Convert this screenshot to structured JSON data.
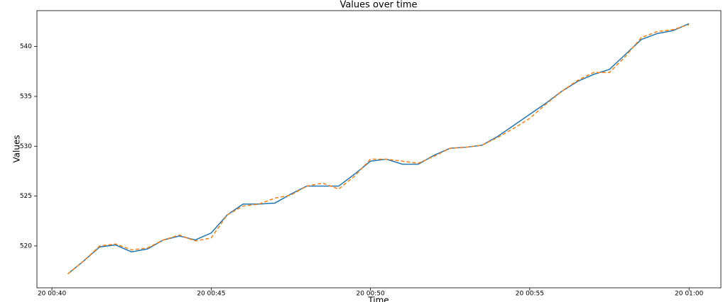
{
  "chart_data": {
    "type": "line",
    "title": "Values over time",
    "xlabel": "Time",
    "ylabel": "Values",
    "x": [
      40.5,
      41.0,
      41.5,
      42.0,
      42.5,
      43.0,
      43.5,
      44.0,
      44.5,
      45.0,
      45.5,
      46.0,
      46.5,
      47.0,
      47.5,
      48.0,
      48.5,
      49.0,
      49.5,
      50.0,
      50.5,
      51.0,
      51.5,
      52.0,
      52.5,
      53.0,
      53.5,
      54.0,
      54.5,
      55.0,
      55.5,
      56.0,
      56.5,
      57.0,
      57.5,
      58.0,
      58.5,
      59.0,
      59.5,
      60.0
    ],
    "series": [
      {
        "color": "#1f77b4",
        "dash": false,
        "values": [
          517.2,
          518.5,
          519.9,
          520.1,
          519.4,
          519.7,
          520.6,
          521.0,
          520.6,
          521.3,
          523.1,
          524.2,
          524.2,
          524.3,
          525.2,
          526.0,
          526.0,
          526.0,
          527.2,
          528.5,
          528.7,
          528.2,
          528.2,
          529.1,
          529.8,
          529.9,
          530.1,
          531.0,
          532.1,
          533.2,
          534.3,
          535.5,
          536.5,
          537.2,
          537.7,
          539.2,
          540.7,
          541.3,
          541.6,
          542.3
        ]
      },
      {
        "color": "#ff7f0e",
        "dash": true,
        "values": [
          517.2,
          518.5,
          520.0,
          520.2,
          519.6,
          519.8,
          520.6,
          521.1,
          520.5,
          520.8,
          523.1,
          524.0,
          524.2,
          524.8,
          525.1,
          526.0,
          526.3,
          525.7,
          527.0,
          528.7,
          528.7,
          528.5,
          528.3,
          529.0,
          529.8,
          529.9,
          530.1,
          530.9,
          531.8,
          532.8,
          534.2,
          535.5,
          536.6,
          537.4,
          537.4,
          539.0,
          540.9,
          541.5,
          541.7,
          542.2
        ]
      }
    ],
    "xlim": [
      39.53,
      61.0
    ],
    "xticks": [
      {
        "value": 40,
        "label": "20 00:40"
      },
      {
        "value": 45,
        "label": "20 00:45"
      },
      {
        "value": 50,
        "label": "20 00:50"
      },
      {
        "value": 55,
        "label": "20 00:55"
      },
      {
        "value": 60,
        "label": "20 01:00"
      }
    ],
    "ylim": [
      515.8,
      543.6
    ],
    "yticks": [
      520,
      525,
      530,
      535,
      540
    ],
    "grid": false
  }
}
